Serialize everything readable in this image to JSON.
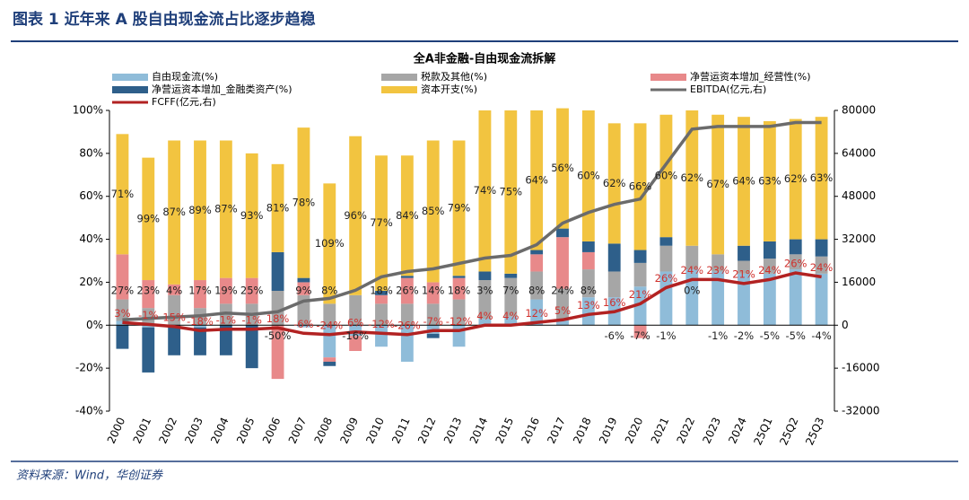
{
  "header": {
    "title": "图表 1    近年来 A 股自由现金流占比逐步趋稳"
  },
  "footer": {
    "source": "资料来源：Wind，华创证券"
  },
  "chart_data": {
    "type": "bar",
    "title": "全A非金融-自由现金流拆解",
    "categories": [
      "2000",
      "2001",
      "2002",
      "2003",
      "2004",
      "2005",
      "2006",
      "2007",
      "2008",
      "2009",
      "2010",
      "2011",
      "2012",
      "2013",
      "2014",
      "2015",
      "2016",
      "2017",
      "2018",
      "2019",
      "2020",
      "2021",
      "2022",
      "2023",
      "2024",
      "25Q1",
      "25Q2",
      "25Q3"
    ],
    "ylim": [
      -40,
      100
    ],
    "yticks": [
      {
        "value": 100,
        "label": "100%"
      },
      {
        "value": 80,
        "label": "80%"
      },
      {
        "value": 60,
        "label": "60%"
      },
      {
        "value": 40,
        "label": "40%"
      },
      {
        "value": 20,
        "label": "20%"
      },
      {
        "value": 0,
        "label": "0%"
      },
      {
        "value": -20,
        "label": "-20%"
      },
      {
        "value": -40,
        "label": "-40%"
      }
    ],
    "y2lim": [
      -32000,
      80000
    ],
    "y2ticks": [
      80000,
      64000,
      48000,
      32000,
      16000,
      0,
      -16000,
      -32000
    ],
    "grid": false,
    "series": [
      {
        "name": "自由现金流(%)",
        "type": "bar",
        "color": "#8fbcd9",
        "values": [
          2,
          -1,
          0,
          -1,
          0,
          0,
          0,
          -1,
          -15,
          -5,
          -10,
          -17,
          -4,
          -10,
          3,
          4,
          12,
          3,
          13,
          13,
          18,
          25,
          26,
          25,
          24,
          24,
          26,
          24
        ]
      },
      {
        "name": "税款及其他(%)",
        "type": "bar",
        "color": "#a6a6a6",
        "values": [
          10,
          8,
          14,
          8,
          10,
          10,
          16,
          14,
          10,
          14,
          10,
          10,
          10,
          12,
          18,
          18,
          13,
          14,
          13,
          12,
          11,
          12,
          11,
          8,
          6,
          7,
          7,
          8
        ]
      },
      {
        "name": "净营运资本增加_经营性(%)",
        "type": "bar",
        "color": "#e8898a",
        "values": [
          21,
          13,
          5,
          13,
          12,
          12,
          -25,
          6,
          -2,
          -7,
          4,
          12,
          10,
          10,
          0,
          0,
          8,
          24,
          8,
          0,
          -6,
          0,
          0,
          0,
          0,
          0,
          0,
          0
        ]
      },
      {
        "name": "净营运资本增加_金融类资产(%)",
        "type": "bar",
        "color": "#2e5f8a",
        "values": [
          -11,
          -21,
          -14,
          -13,
          -14,
          -20,
          18,
          2,
          -2,
          0,
          2,
          1,
          -2,
          1,
          4,
          2,
          2,
          4,
          5,
          13,
          6,
          4,
          0,
          0,
          7,
          8,
          7,
          8
        ]
      },
      {
        "name": "资本开支(%)",
        "type": "bar",
        "color": "#f2c440",
        "values": [
          56,
          57,
          67,
          65,
          64,
          58,
          41,
          70,
          56,
          74,
          63,
          56,
          66,
          63,
          75,
          76,
          65,
          56,
          61,
          56,
          59,
          57,
          63,
          65,
          60,
          56,
          56,
          57
        ]
      },
      {
        "name": "EBITDA(亿元,右)",
        "type": "line",
        "axis": "y2",
        "color": "#6b6b6b",
        "values": [
          2000,
          2500,
          3000,
          3500,
          4500,
          4000,
          5000,
          9000,
          10000,
          13000,
          18000,
          20000,
          21000,
          23000,
          25000,
          26000,
          30000,
          38000,
          42000,
          45000,
          47000,
          60000,
          73000,
          74000,
          74000,
          74000,
          75500,
          75500
        ]
      },
      {
        "name": "FCFF(亿元,右)",
        "type": "line",
        "axis": "y2",
        "color": "#b22222",
        "values": [
          1000,
          300,
          -500,
          -2000,
          -1500,
          -1500,
          -1000,
          -3000,
          -3500,
          -2500,
          -3000,
          -3500,
          -2000,
          -2000,
          0,
          0,
          1000,
          2000,
          4000,
          5000,
          8000,
          14000,
          17000,
          17000,
          15500,
          17000,
          19500,
          18000
        ]
      }
    ],
    "label_rows": [
      {
        "color": "#222222",
        "labels": [
          "71%",
          "99%",
          "87%",
          "89%",
          "87%",
          "93%",
          "81%",
          "78%",
          "109%",
          "96%",
          "77%",
          "84%",
          "85%",
          "79%",
          "74%",
          "75%",
          "64%",
          "56%",
          "60%",
          "62%",
          "66%",
          "60%",
          "62%",
          "67%",
          "64%",
          "63%",
          "62%",
          "63%"
        ]
      },
      {
        "color": "#222222",
        "labels": [
          "27%",
          "23%",
          "4%",
          "17%",
          "19%",
          "25%",
          "-50%",
          "9%",
          "8%",
          "-16%",
          "18%",
          "26%",
          "14%",
          "18%",
          "3%",
          "7%",
          "8%",
          "24%",
          "8%",
          "-6%",
          "-7%",
          "-1%",
          "0%",
          "-1%",
          "-2%",
          "-5%",
          "-5%",
          "-4%"
        ]
      },
      {
        "color": "#d0312d",
        "labels": [
          "3%",
          "-1%",
          "15%",
          "-18%",
          "-1%",
          "-1%",
          "18%",
          "-6%",
          "-24%",
          "6%",
          "-12%",
          "-26%",
          "-7%",
          "-12%",
          "4%",
          "4%",
          "12%",
          "5%",
          "13%",
          "16%",
          "21%",
          "26%",
          "24%",
          "23%",
          "21%",
          "24%",
          "26%",
          "24%"
        ]
      }
    ]
  }
}
